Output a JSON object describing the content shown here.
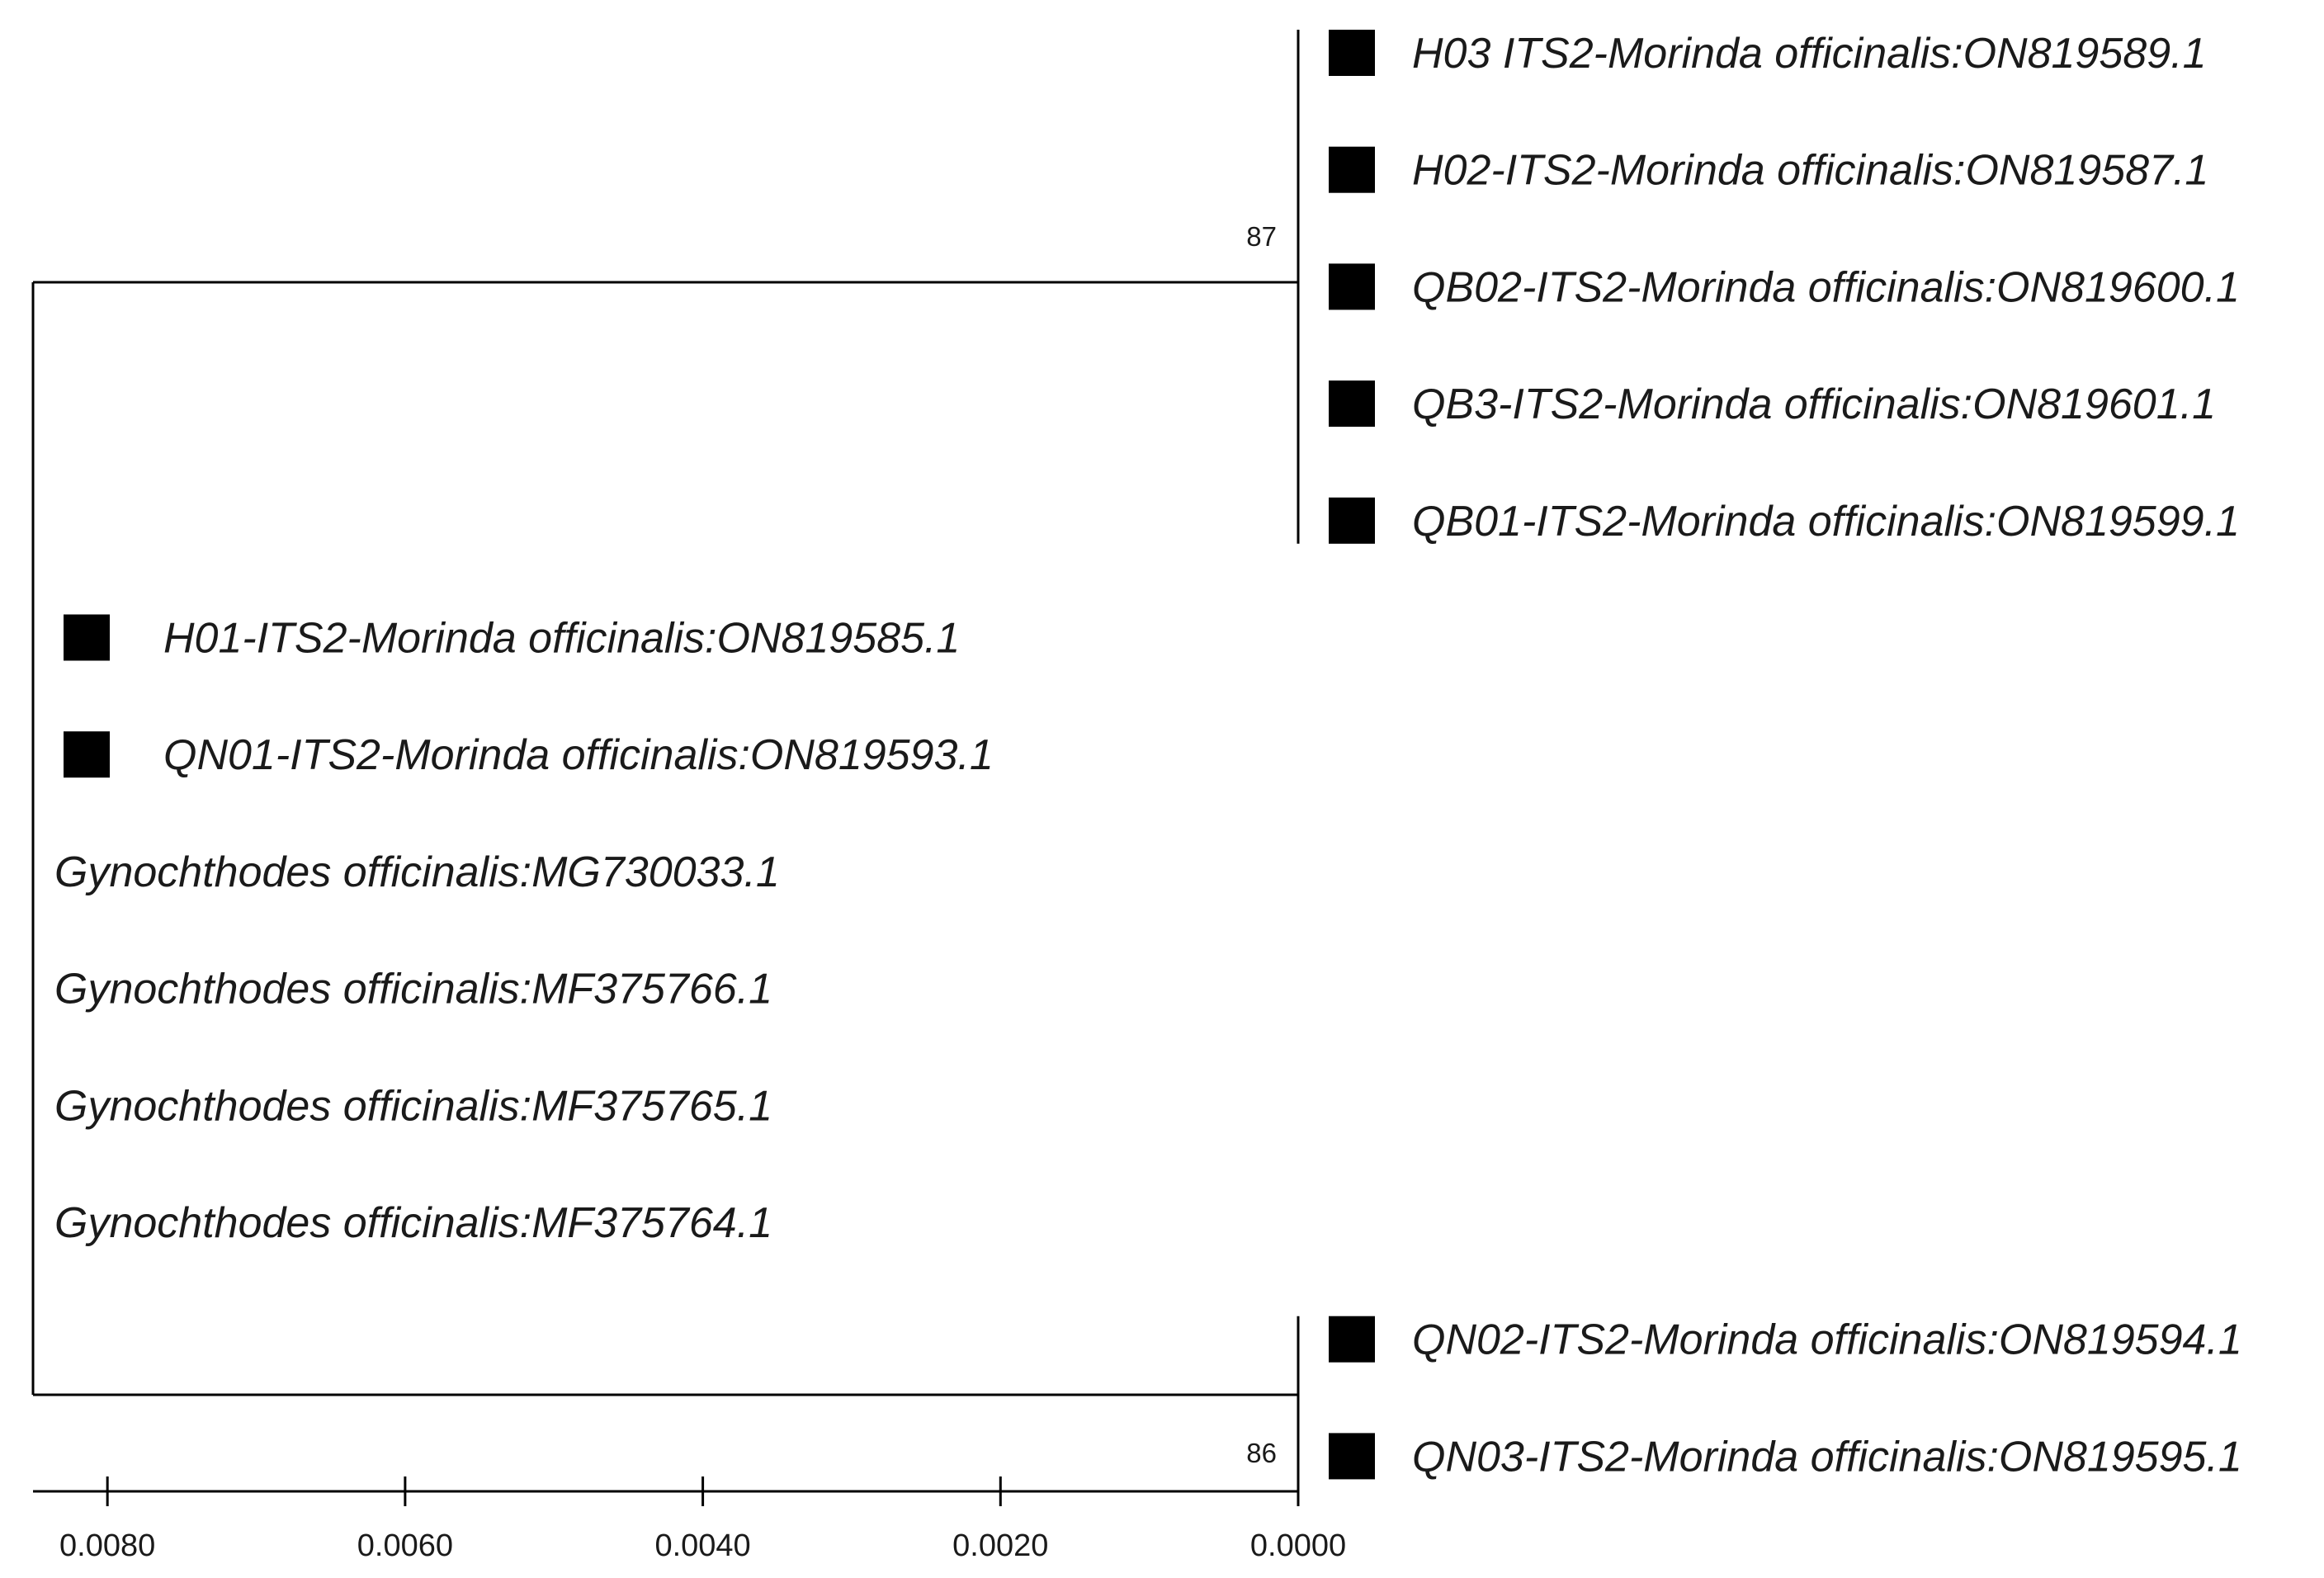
{
  "tree": {
    "type": "phylogenetic-tree",
    "groups": [
      {
        "id": "clade-top",
        "bootstrap": "87",
        "leaves": [
          {
            "label": "H03 ITS2-Morinda officinalis:ON819589.1",
            "marker": true
          },
          {
            "label": "H02-ITS2-Morinda officinalis:ON819587.1",
            "marker": true
          },
          {
            "label": "QB02-ITS2-Morinda officinalis:ON819600.1",
            "marker": true
          },
          {
            "label": "QB3-ITS2-Morinda officinalis:ON819601.1",
            "marker": true
          },
          {
            "label": "QB01-ITS2-Morinda officinalis:ON819599.1",
            "marker": true
          }
        ]
      },
      {
        "id": "root-leaves",
        "leaves": [
          {
            "label": "H01-ITS2-Morinda officinalis:ON819585.1",
            "marker": true
          },
          {
            "label": "QN01-ITS2-Morinda officinalis:ON819593.1",
            "marker": true
          },
          {
            "label": "Gynochthodes officinalis:MG730033.1",
            "marker": false
          },
          {
            "label": "Gynochthodes officinalis:MF375766.1",
            "marker": false
          },
          {
            "label": "Gynochthodes officinalis:MF375765.1",
            "marker": false
          },
          {
            "label": "Gynochthodes officinalis:MF375764.1",
            "marker": false
          }
        ]
      },
      {
        "id": "clade-bottom",
        "bootstrap": "86",
        "leaves": [
          {
            "label": "QN02-ITS2-Morinda officinalis:ON819594.1",
            "marker": true
          },
          {
            "label": "QN03-ITS2-Morinda officinalis:ON819595.1",
            "marker": true
          }
        ]
      }
    ],
    "branch_length_clades": 0.0086,
    "scale_axis": {
      "ticks": [
        "0.0080",
        "0.0060",
        "0.0040",
        "0.0020",
        "0.0000"
      ],
      "tick_values": [
        0.008,
        0.006,
        0.004,
        0.002,
        0.0
      ]
    },
    "colors": {
      "line": "#000000",
      "marker": "#000000",
      "text": "#1a1a1a"
    }
  }
}
